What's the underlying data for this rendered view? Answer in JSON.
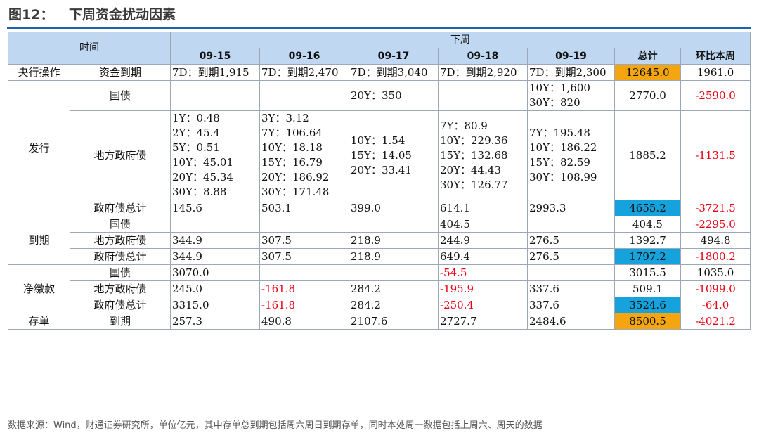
{
  "title": {
    "label": "图12：",
    "text": "下周资金扰动因素"
  },
  "header": {
    "time": "时间",
    "next_week": "下周",
    "dates": [
      "09-15",
      "09-16",
      "09-17",
      "09-18",
      "09-19"
    ],
    "total": "总计",
    "wow": "环比本周"
  },
  "rows": {
    "central_bank": {
      "group": "央行操作",
      "item": "资金到期",
      "cells": [
        "7D：到期1,915",
        "7D：到期2,470",
        "7D：到期3,040",
        "7D：到期2,920",
        "7D：到期2,300"
      ],
      "total": "12645.0",
      "wow": "1961.0"
    },
    "issue": {
      "group": "发行",
      "gov_bond": {
        "item": "国债",
        "cells": [
          [],
          [],
          [
            "20Y：350"
          ],
          [],
          [
            "10Y：1,600",
            "30Y：820"
          ]
        ],
        "total": "2770.0",
        "wow": "-2590.0"
      },
      "local_bond": {
        "item": "地方政府债",
        "cells": [
          [
            "1Y：0.48",
            "2Y：45.4",
            "5Y：0.51",
            "10Y：45.01",
            "20Y：45.34",
            "30Y：8.88"
          ],
          [
            "3Y：3.12",
            "7Y：106.64",
            "10Y：18.18",
            "15Y：16.79",
            "20Y：186.92",
            "30Y：171.48"
          ],
          [
            "10Y：1.54",
            "15Y：14.05",
            "20Y：33.41"
          ],
          [
            "7Y：80.9",
            "10Y：229.36",
            "15Y：132.68",
            "20Y：44.43",
            "30Y：126.77"
          ],
          [
            "7Y：195.48",
            "10Y：186.22",
            "15Y：82.59",
            "30Y：108.99"
          ]
        ],
        "total": "1885.2",
        "wow": "-1131.5"
      },
      "gov_total": {
        "item": "政府债总计",
        "cells": [
          "145.6",
          "503.1",
          "399.0",
          "614.1",
          "2993.3"
        ],
        "total": "4655.2",
        "wow": "-3721.5"
      }
    },
    "maturity": {
      "group": "到期",
      "gov_bond": {
        "item": "国债",
        "cells": [
          "",
          "",
          "",
          "404.5",
          ""
        ],
        "total": "404.5",
        "wow": "-2295.0"
      },
      "local_bond": {
        "item": "地方政府债",
        "cells": [
          "344.9",
          "307.5",
          "218.9",
          "244.9",
          "276.5"
        ],
        "total": "1392.7",
        "wow": "494.8"
      },
      "gov_total": {
        "item": "政府债总计",
        "cells": [
          "344.9",
          "307.5",
          "218.9",
          "649.4",
          "276.5"
        ],
        "total": "1797.2",
        "wow": "-1800.2"
      }
    },
    "net": {
      "group": "净缴款",
      "gov_bond": {
        "item": "国债",
        "cells": [
          "3070.0",
          "",
          "",
          "-54.5",
          ""
        ],
        "total": "3015.5",
        "wow": "1035.0"
      },
      "local_bond": {
        "item": "地方政府债",
        "cells": [
          "245.0",
          "-161.8",
          "284.2",
          "-195.9",
          "337.6"
        ],
        "total": "509.1",
        "wow": "-1099.0"
      },
      "gov_total": {
        "item": "政府债总计",
        "cells": [
          "3315.0",
          "-161.8",
          "284.2",
          "-250.4",
          "337.6"
        ],
        "total": "3524.6",
        "wow": "-64.0"
      }
    },
    "cd": {
      "group": "存单",
      "item": "到期",
      "cells": [
        "257.3",
        "490.8",
        "2107.6",
        "2727.7",
        "2484.6"
      ],
      "total": "8500.5",
      "wow": "-4021.2"
    }
  },
  "colors": {
    "header_bg": "#bfd7f1",
    "highlight_orange": "#f5a50f",
    "highlight_blue": "#16a2dc",
    "negative": "#e60012",
    "rule": "#1f64b4"
  },
  "source": "数据来源：Wind，财通证券研究所，单位亿元，其中存单总到期包括周六周日到期存单，同时本处周一数据包括上周六、周天的数据"
}
